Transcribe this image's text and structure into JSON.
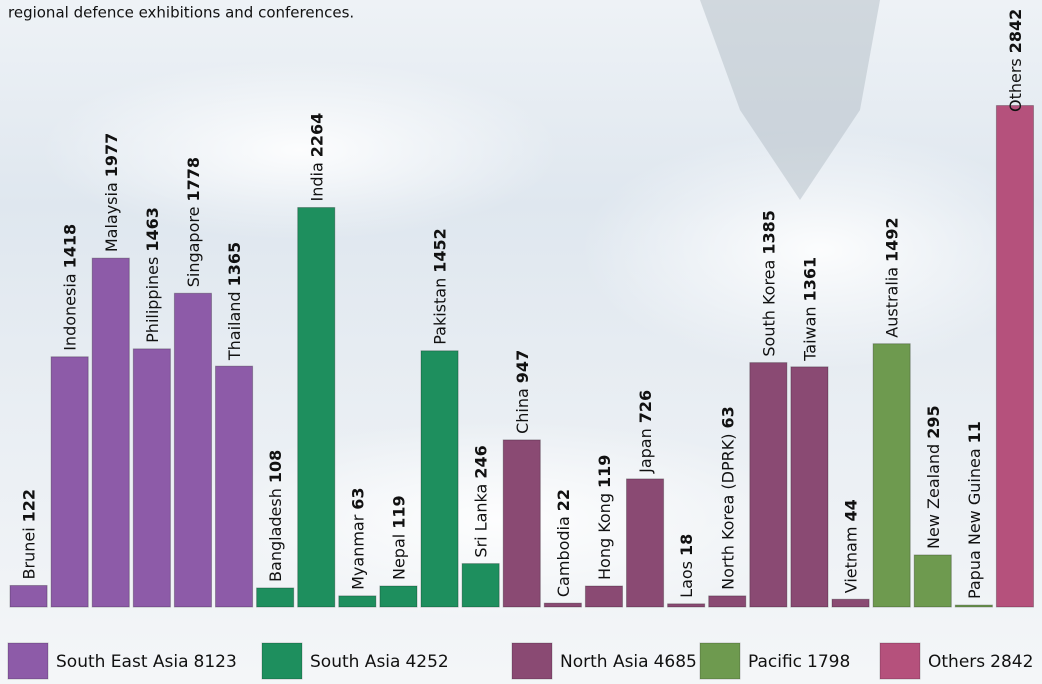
{
  "intro": "regional defence exhibitions and conferences.",
  "chart_data": {
    "type": "bar",
    "ylim": [
      0,
      3440
    ],
    "series": [
      {
        "name": "South East Asia",
        "total": 8123,
        "color": "#8d5ba8",
        "categories": [
          "Brunei",
          "Indonesia",
          "Malaysia",
          "Philippines",
          "Singapore",
          "Thailand"
        ],
        "values": [
          122,
          1418,
          1977,
          1463,
          1778,
          1365
        ]
      },
      {
        "name": "South Asia",
        "total": 4252,
        "color": "#1e8f5e",
        "categories": [
          "Bangladesh",
          "India",
          "Myanmar",
          "Nepal",
          "Pakistan",
          "Sri Lanka"
        ],
        "values": [
          108,
          2264,
          63,
          119,
          1452,
          246
        ]
      },
      {
        "name": "North Asia",
        "total": 4685,
        "color": "#8a4a73",
        "categories": [
          "China",
          "Cambodia",
          "Hong Kong",
          "Japan",
          "Laos",
          "North Korea (DPRK)",
          "South Korea",
          "Taiwan",
          "Vietnam"
        ],
        "values": [
          947,
          22,
          119,
          726,
          18,
          63,
          1385,
          1361,
          44
        ]
      },
      {
        "name": "Pacific",
        "total": 1798,
        "color": "#6e9a4f",
        "categories": [
          "Australia",
          "New Zealand",
          "Papua New Guinea"
        ],
        "values": [
          1492,
          295,
          11
        ]
      },
      {
        "name": "Others",
        "total": 2842,
        "color": "#b5517c",
        "categories": [
          "Others"
        ],
        "values": [
          2842
        ]
      }
    ]
  }
}
